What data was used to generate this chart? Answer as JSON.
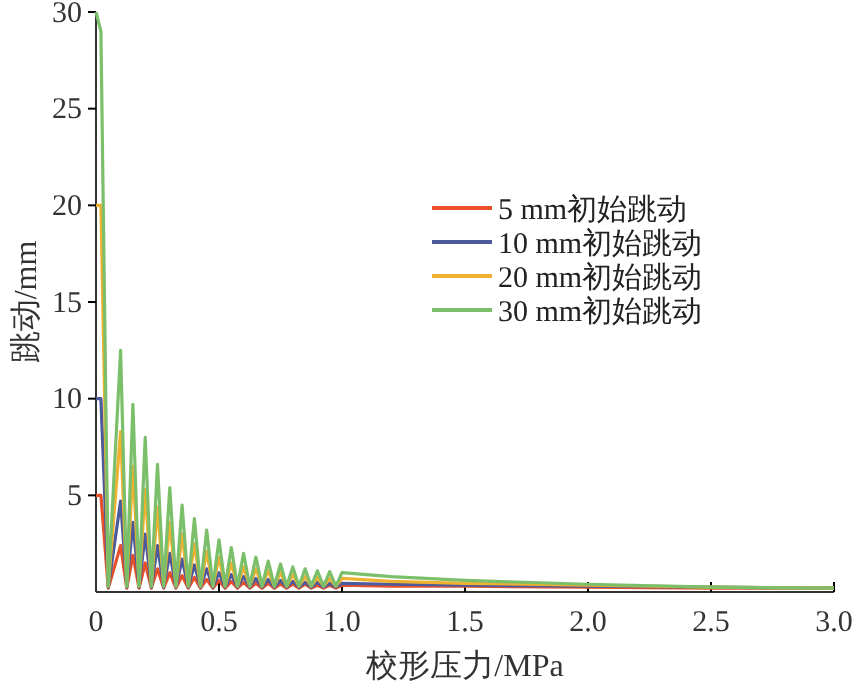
{
  "chart_data": {
    "type": "line",
    "xlabel": "校形压力/MPa",
    "ylabel": "跳动/mm",
    "x": [
      0,
      0.02,
      0.05,
      0.1,
      0.125,
      0.15,
      0.175,
      0.2,
      0.225,
      0.25,
      0.275,
      0.3,
      0.325,
      0.35,
      0.375,
      0.4,
      0.425,
      0.45,
      0.475,
      0.5,
      0.525,
      0.55,
      0.575,
      0.6,
      0.625,
      0.65,
      0.675,
      0.7,
      0.725,
      0.75,
      0.775,
      0.8,
      0.825,
      0.85,
      0.875,
      0.9,
      0.925,
      0.95,
      0.975,
      1.0,
      1.2,
      1.5,
      2.0,
      2.5,
      3.0
    ],
    "series": [
      {
        "name": "5 mm初始跳动",
        "color": "#e8502a",
        "values": [
          5,
          5,
          0.2,
          2.4,
          0.2,
          1.9,
          0.2,
          1.5,
          0.2,
          1.2,
          0.2,
          1.0,
          0.2,
          0.85,
          0.2,
          0.75,
          0.2,
          0.65,
          0.2,
          0.6,
          0.2,
          0.55,
          0.2,
          0.5,
          0.2,
          0.45,
          0.2,
          0.45,
          0.2,
          0.4,
          0.2,
          0.4,
          0.2,
          0.4,
          0.2,
          0.35,
          0.2,
          0.35,
          0.2,
          0.35,
          0.3,
          0.3,
          0.25,
          0.2,
          0.2
        ]
      },
      {
        "name": "10 mm初始跳动",
        "color": "#4a5a9a",
        "values": [
          10,
          10,
          0.25,
          4.7,
          0.25,
          3.6,
          0.25,
          3.0,
          0.25,
          2.4,
          0.25,
          2.0,
          0.25,
          1.7,
          0.25,
          1.4,
          0.25,
          1.2,
          0.25,
          1.0,
          0.25,
          0.9,
          0.25,
          0.8,
          0.25,
          0.7,
          0.25,
          0.65,
          0.25,
          0.6,
          0.25,
          0.55,
          0.25,
          0.5,
          0.25,
          0.5,
          0.25,
          0.45,
          0.25,
          0.45,
          0.4,
          0.35,
          0.3,
          0.25,
          0.2
        ]
      },
      {
        "name": "20 mm初始跳动",
        "color": "#f0b030",
        "values": [
          20,
          20,
          0.3,
          8.3,
          0.3,
          6.5,
          0.3,
          5.3,
          0.3,
          4.4,
          0.3,
          3.6,
          0.3,
          3.0,
          0.3,
          2.5,
          0.3,
          2.1,
          0.3,
          1.8,
          0.3,
          1.5,
          0.3,
          1.3,
          0.3,
          1.2,
          0.3,
          1.1,
          0.3,
          1.0,
          0.3,
          0.9,
          0.3,
          0.8,
          0.3,
          0.75,
          0.3,
          0.7,
          0.3,
          0.7,
          0.55,
          0.45,
          0.35,
          0.25,
          0.2
        ]
      },
      {
        "name": "30 mm初始跳动",
        "color": "#7cbf6a",
        "values": [
          30,
          29,
          0.3,
          12.5,
          0.3,
          9.7,
          0.3,
          8.0,
          0.3,
          6.6,
          0.3,
          5.4,
          0.3,
          4.5,
          0.3,
          3.8,
          0.3,
          3.2,
          0.3,
          2.7,
          0.3,
          2.3,
          0.3,
          2.0,
          0.3,
          1.8,
          0.3,
          1.6,
          0.3,
          1.45,
          0.3,
          1.3,
          0.3,
          1.2,
          0.3,
          1.1,
          0.3,
          1.05,
          0.3,
          1.0,
          0.8,
          0.6,
          0.4,
          0.25,
          0.2
        ]
      }
    ],
    "xlim": [
      0,
      3
    ],
    "xticks": [
      0,
      0.5,
      {
        "value": 1,
        "label": "1.0"
      },
      1.5,
      {
        "value": 2,
        "label": "2.0"
      },
      2.5,
      {
        "value": 3,
        "label": "3.0"
      }
    ],
    "ylim": [
      0,
      30
    ],
    "yticks": [
      5,
      10,
      15,
      20,
      25,
      30
    ],
    "legend": "right",
    "grid": false,
    "marker": "none",
    "line_style": "solid"
  }
}
